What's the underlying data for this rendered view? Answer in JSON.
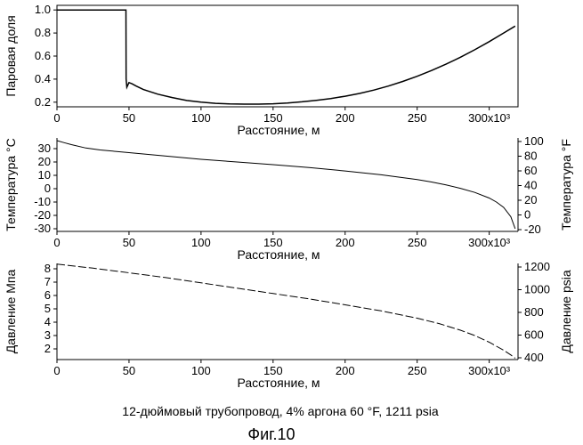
{
  "caption": "12-дюймовый трубопровод, 4% аргона 60 °F, 1211 psia",
  "figure_label": "Фиг.10",
  "chart_data": [
    {
      "type": "line",
      "xlabel": "Расстояние, м",
      "ylabel": "Паровая доля",
      "xlim": [
        0,
        320
      ],
      "ylim": [
        0.16,
        1.04
      ],
      "x_ticks": [
        0,
        50,
        100,
        150,
        200,
        250,
        300
      ],
      "x_tick_labels": [
        "0",
        "50",
        "100",
        "150",
        "200",
        "250",
        "300x10³"
      ],
      "y_ticks": [
        0.2,
        0.4,
        0.6,
        0.8,
        1.0
      ],
      "y_tick_labels": [
        "0.2",
        "0.4",
        "0.6",
        "0.8",
        "1.0"
      ],
      "series": [
        {
          "x": [
            0,
            47.9,
            48,
            48.5,
            50,
            52,
            55,
            60,
            70,
            80,
            90,
            100,
            110,
            120,
            130,
            140,
            150,
            160,
            170,
            180,
            190,
            200,
            210,
            220,
            230,
            240,
            250,
            260,
            270,
            280,
            290,
            300,
            310,
            318
          ],
          "y": [
            1.0,
            1.0,
            0.4,
            0.33,
            0.37,
            0.36,
            0.34,
            0.31,
            0.27,
            0.24,
            0.215,
            0.2,
            0.19,
            0.185,
            0.183,
            0.183,
            0.186,
            0.193,
            0.203,
            0.216,
            0.232,
            0.252,
            0.276,
            0.305,
            0.34,
            0.38,
            0.425,
            0.475,
            0.53,
            0.59,
            0.655,
            0.725,
            0.8,
            0.86
          ]
        }
      ]
    },
    {
      "type": "line",
      "xlabel": "Расстояние, м",
      "ylabel": "Температура °C",
      "y2label": "Температура °F",
      "xlim": [
        0,
        320
      ],
      "ylim": [
        -32,
        38
      ],
      "x_ticks": [
        0,
        50,
        100,
        150,
        200,
        250,
        300
      ],
      "x_tick_labels": [
        "0",
        "50",
        "100",
        "150",
        "200",
        "250",
        "300x10³"
      ],
      "y_ticks": [
        -30,
        -20,
        -10,
        0,
        10,
        20,
        30
      ],
      "y_tick_labels": [
        "-30",
        "-20",
        "-10",
        "0",
        "10",
        "20",
        "30"
      ],
      "y2_ticks": [
        -20,
        0,
        20,
        40,
        60,
        80,
        100
      ],
      "y2_tick_labels": [
        "-20",
        "0",
        "20",
        "40",
        "60",
        "80",
        "100"
      ],
      "series": [
        {
          "x": [
            0,
            5,
            10,
            20,
            30,
            50,
            75,
            100,
            125,
            150,
            175,
            200,
            225,
            250,
            260,
            270,
            280,
            290,
            300,
            305,
            310,
            315,
            318
          ],
          "y": [
            36,
            34.5,
            33,
            30.5,
            29,
            27,
            24.5,
            22,
            20,
            18,
            15.8,
            13.3,
            10.4,
            6.8,
            5,
            2.8,
            0.3,
            -2.8,
            -7,
            -10,
            -14,
            -21,
            -30
          ]
        }
      ]
    },
    {
      "type": "line",
      "xlabel": "Расстояние, м",
      "ylabel": "Давление Мпа",
      "y2label": "Давление psia",
      "xlim": [
        0,
        320
      ],
      "ylim": [
        1.2,
        8.4
      ],
      "x_ticks": [
        0,
        50,
        100,
        150,
        200,
        250,
        300
      ],
      "x_tick_labels": [
        "0",
        "50",
        "100",
        "150",
        "200",
        "250",
        "300x10³"
      ],
      "y_ticks": [
        2,
        3,
        4,
        5,
        6,
        7,
        8
      ],
      "y_tick_labels": [
        "2",
        "3",
        "4",
        "5",
        "6",
        "7",
        "8"
      ],
      "y2_ticks": [
        400,
        600,
        800,
        1000,
        1200
      ],
      "y2_tick_labels": [
        "400",
        "600",
        "800",
        "1000",
        "1200"
      ],
      "series": [
        {
          "x": [
            0,
            25,
            50,
            75,
            100,
            125,
            150,
            175,
            200,
            225,
            250,
            265,
            280,
            290,
            300,
            305,
            310,
            315,
            318
          ],
          "y": [
            8.35,
            8.05,
            7.7,
            7.35,
            6.95,
            6.55,
            6.15,
            5.75,
            5.3,
            4.85,
            4.3,
            3.9,
            3.4,
            3.0,
            2.5,
            2.2,
            1.9,
            1.55,
            1.3
          ]
        }
      ]
    }
  ]
}
